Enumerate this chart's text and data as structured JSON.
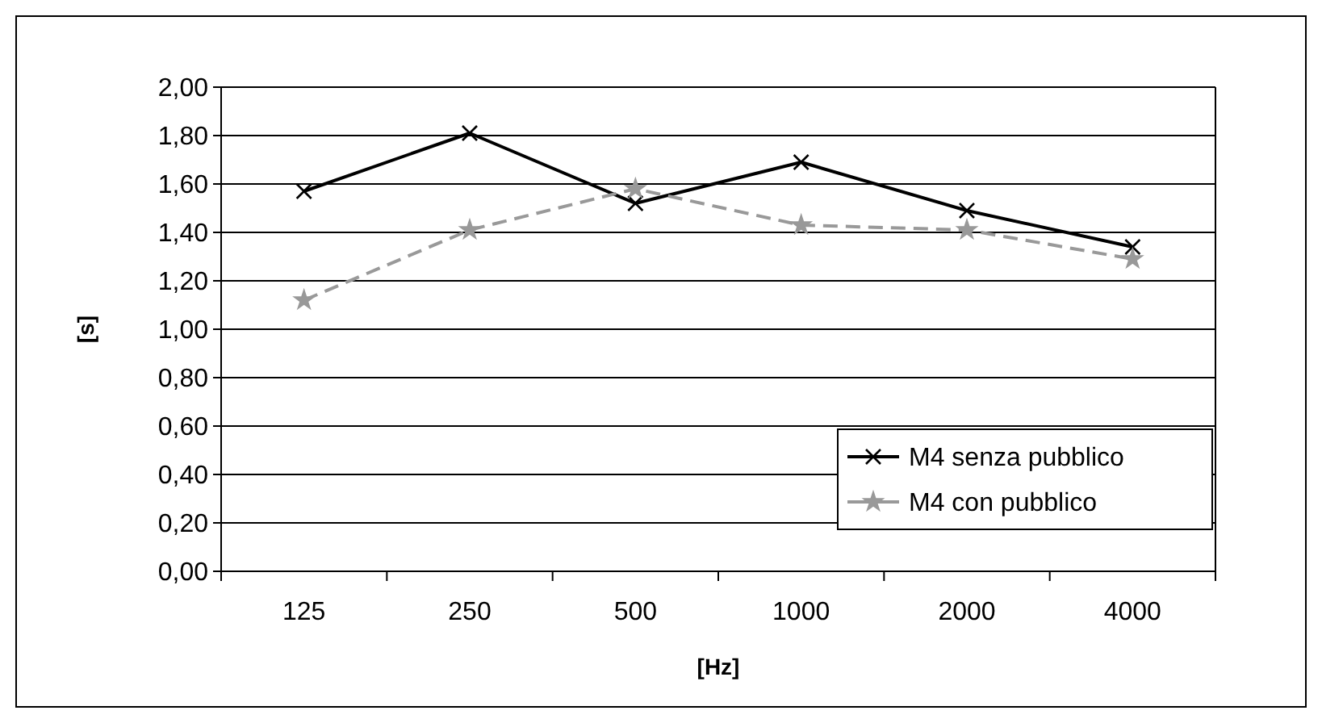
{
  "chart_data": {
    "type": "line",
    "xlabel": "[Hz]",
    "ylabel": "[s]",
    "categories": [
      "125",
      "250",
      "500",
      "1000",
      "2000",
      "4000"
    ],
    "series": [
      {
        "name": "M4 senza pubblico",
        "color": "#000000",
        "values": [
          1.57,
          1.81,
          1.52,
          1.69,
          1.49,
          1.34
        ],
        "marker": "cross",
        "line_style": "solid"
      },
      {
        "name": "M4 con pubblico",
        "color": "#999999",
        "values": [
          1.12,
          1.41,
          1.58,
          1.43,
          1.41,
          1.29
        ],
        "marker": "star",
        "line_style": "dashed"
      }
    ],
    "ylim": [
      0,
      2
    ],
    "yticks": [
      {
        "value": 0,
        "label": "0,00"
      },
      {
        "value": 0.2,
        "label": "0,20"
      },
      {
        "value": 0.4,
        "label": "0,40"
      },
      {
        "value": 0.6,
        "label": "0,60"
      },
      {
        "value": 0.8,
        "label": "0,80"
      },
      {
        "value": 1,
        "label": "1,00"
      },
      {
        "value": 1.2,
        "label": "1,20"
      },
      {
        "value": 1.4,
        "label": "1,40"
      },
      {
        "value": 1.6,
        "label": "1,60"
      },
      {
        "value": 1.8,
        "label": "1,80"
      },
      {
        "value": 2,
        "label": "2,00"
      }
    ],
    "grid": "y",
    "legend": "bottom right"
  }
}
